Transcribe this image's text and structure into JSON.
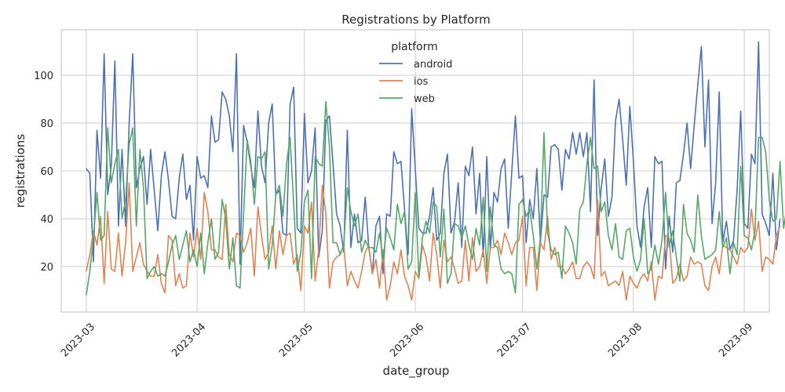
{
  "chart_data": {
    "type": "line",
    "title": "Registrations by Platform",
    "xlabel": "date_group",
    "ylabel": "registrations",
    "x_start": "2023-03-01",
    "x_end": "2023-08-31",
    "xlim": [
      "2023-02-22",
      "2023-09-08"
    ],
    "ylim": [
      1,
      119
    ],
    "x_ticks": [
      "2023-03",
      "2023-04",
      "2023-05",
      "2023-06",
      "2023-07",
      "2023-08",
      "2023-09"
    ],
    "y_ticks": [
      20,
      40,
      60,
      80,
      100
    ],
    "grid": true,
    "legend_title": "platform",
    "legend_position": "top-center",
    "colors": {
      "android": "#4c72b0",
      "ios": "#dd8452",
      "web": "#55a868",
      "grid": "#cccccc",
      "axes": "#cccccc"
    },
    "series": [
      {
        "name": "android",
        "values": [
          61,
          59,
          22,
          77,
          57,
          109,
          50,
          62,
          106,
          37,
          69,
          37,
          80,
          109,
          53,
          61,
          66,
          46,
          69,
          52,
          35,
          58,
          68,
          56,
          41,
          40,
          57,
          67,
          48,
          54,
          31,
          66,
          57,
          58,
          53,
          83,
          72,
          73,
          93,
          90,
          83,
          68,
          109,
          21,
          79,
          72,
          62,
          53,
          85,
          62,
          55,
          80,
          88,
          50,
          52,
          34,
          33,
          88,
          95,
          36,
          34,
          84,
          55,
          60,
          78,
          24,
          35,
          81,
          83,
          63,
          42,
          37,
          26,
          77,
          28,
          42,
          30,
          31,
          49,
          28,
          17,
          37,
          41,
          17,
          42,
          41,
          68,
          63,
          64,
          44,
          25,
          86,
          61,
          36,
          34,
          34,
          41,
          53,
          31,
          34,
          59,
          67,
          34,
          39,
          55,
          28,
          62,
          58,
          70,
          42,
          59,
          24,
          66,
          27,
          51,
          47,
          61,
          65,
          36,
          60,
          83,
          57,
          58,
          30,
          48,
          40,
          61,
          30,
          50,
          49,
          70,
          71,
          69,
          52,
          69,
          65,
          76,
          67,
          76,
          66,
          76,
          43,
          98,
          33,
          53,
          65,
          41,
          49,
          81,
          90,
          73,
          54,
          87,
          64,
          37,
          28,
          45,
          53,
          28,
          66,
          63,
          64,
          19,
          41,
          26,
          55,
          56,
          67,
          80,
          61,
          79,
          96,
          112,
          70,
          98,
          38,
          55,
          93,
          30,
          39,
          27,
          31,
          52,
          85,
          38,
          36,
          67,
          63,
          114,
          42,
          38,
          33,
          59,
          27,
          40
        ]
      },
      {
        "name": "ios",
        "values": [
          18,
          25,
          35,
          29,
          41,
          13,
          43,
          19,
          18,
          34,
          16,
          30,
          55,
          18,
          24,
          30,
          21,
          18,
          16,
          16,
          25,
          13,
          9,
          33,
          31,
          12,
          17,
          11,
          12,
          34,
          24,
          36,
          23,
          51,
          43,
          27,
          27,
          24,
          23,
          46,
          25,
          22,
          34,
          33,
          26,
          30,
          36,
          16,
          45,
          33,
          23,
          26,
          37,
          19,
          35,
          25,
          33,
          34,
          21,
          25,
          10,
          37,
          34,
          47,
          14,
          27,
          54,
          42,
          11,
          22,
          24,
          25,
          29,
          12,
          18,
          14,
          11,
          18,
          26,
          29,
          17,
          23,
          11,
          27,
          6,
          12,
          22,
          17,
          27,
          16,
          12,
          6,
          18,
          15,
          29,
          24,
          14,
          34,
          25,
          11,
          31,
          22,
          24,
          19,
          13,
          14,
          31,
          14,
          32,
          18,
          20,
          27,
          13,
          28,
          28,
          31,
          25,
          34,
          30,
          25,
          30,
          31,
          41,
          12,
          28,
          28,
          10,
          30,
          27,
          41,
          23,
          28,
          20,
          20,
          17,
          19,
          22,
          15,
          15,
          20,
          22,
          20,
          15,
          48,
          16,
          18,
          12,
          13,
          14,
          12,
          18,
          6,
          16,
          13,
          11,
          15,
          17,
          14,
          22,
          6,
          16,
          15,
          33,
          32,
          13,
          15,
          21,
          14,
          16,
          24,
          21,
          22,
          21,
          12,
          10,
          20,
          24,
          17,
          29,
          28,
          27,
          24,
          21,
          28,
          26,
          28,
          44,
          31,
          39,
          18,
          24,
          23,
          21,
          33,
          37
        ]
      },
      {
        "name": "web",
        "values": [
          8,
          18,
          32,
          51,
          31,
          33,
          78,
          55,
          63,
          69,
          40,
          48,
          71,
          78,
          37,
          69,
          53,
          15,
          18,
          20,
          16,
          17,
          16,
          22,
          29,
          33,
          23,
          29,
          35,
          22,
          27,
          20,
          34,
          17,
          30,
          40,
          23,
          26,
          48,
          40,
          19,
          32,
          12,
          11,
          42,
          73,
          64,
          46,
          66,
          65,
          68,
          19,
          29,
          50,
          54,
          41,
          63,
          74,
          46,
          18,
          26,
          47,
          52,
          15,
          66,
          63,
          62,
          89,
          70,
          30,
          30,
          25,
          29,
          53,
          43,
          37,
          42,
          26,
          31,
          28,
          28,
          26,
          34,
          23,
          36,
          32,
          27,
          46,
          38,
          43,
          19,
          22,
          51,
          16,
          32,
          39,
          34,
          47,
          45,
          24,
          44,
          13,
          17,
          38,
          37,
          32,
          37,
          29,
          23,
          36,
          29,
          49,
          18,
          45,
          29,
          28,
          19,
          17,
          18,
          17,
          9,
          46,
          48,
          41,
          44,
          33,
          19,
          32,
          76,
          34,
          27,
          25,
          26,
          15,
          37,
          34,
          30,
          21,
          44,
          47,
          63,
          74,
          61,
          62,
          43,
          47,
          33,
          27,
          38,
          24,
          23,
          35,
          36,
          24,
          18,
          23,
          40,
          17,
          19,
          29,
          21,
          31,
          51,
          28,
          35,
          24,
          14,
          46,
          34,
          31,
          26,
          50,
          33,
          23,
          24,
          25,
          27,
          43,
          28,
          32,
          17,
          30,
          25,
          62,
          33,
          32,
          27,
          35,
          74,
          74,
          68,
          48,
          39,
          40,
          64,
          36,
          46
        ]
      }
    ]
  }
}
